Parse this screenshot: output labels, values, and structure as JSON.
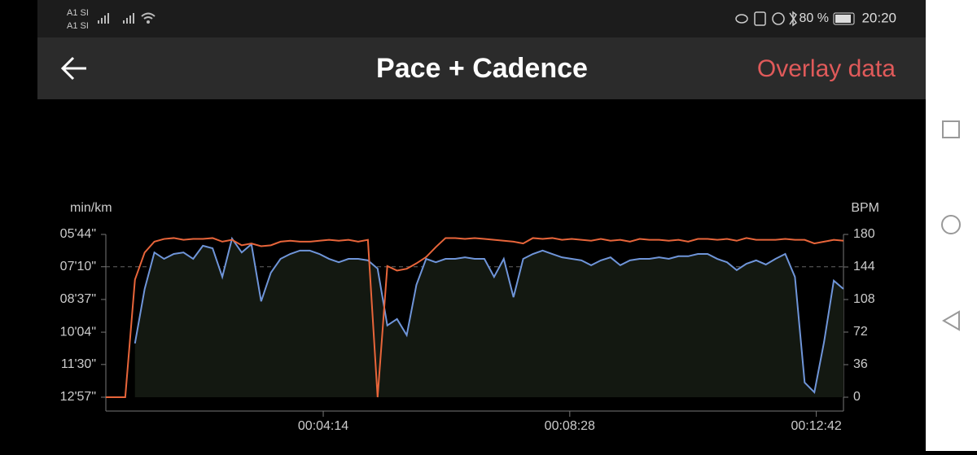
{
  "status_bar": {
    "carriers": [
      "A1 SI",
      "A1 SI"
    ],
    "battery": "80 %",
    "time": "20:20"
  },
  "header": {
    "title": "Pace + Cadence",
    "action": "Overlay data"
  },
  "chart_data": {
    "type": "line",
    "ylabel": "min/km",
    "y2label": "BPM",
    "x": [
      30,
      40,
      50,
      60,
      70,
      80,
      90,
      100,
      110,
      120,
      130,
      140,
      150,
      160,
      170,
      180,
      190,
      200,
      210,
      220,
      230,
      240,
      250,
      260,
      270,
      280,
      290,
      300,
      310,
      320,
      330,
      340,
      350,
      360,
      370,
      380,
      390,
      400,
      410,
      420,
      430,
      440,
      450,
      460,
      470,
      480,
      490,
      500,
      510,
      520,
      530,
      540,
      550,
      560,
      570,
      580,
      590,
      600,
      610,
      620,
      630,
      640,
      650,
      660,
      670,
      680,
      690,
      700,
      710,
      720,
      730,
      740,
      750,
      760,
      770,
      780,
      790
    ],
    "xlim": [
      30,
      790
    ],
    "xticks": [
      {
        "value": 254,
        "label": "00:04:14"
      },
      {
        "value": 508,
        "label": "00:08:28"
      },
      {
        "value": 762,
        "label": "00:12:42"
      }
    ],
    "ylim": [
      777,
      344
    ],
    "yticks": [
      {
        "value": 344,
        "label": "05'44\""
      },
      {
        "value": 430,
        "label": "07'10\""
      },
      {
        "value": 517,
        "label": "08'37\""
      },
      {
        "value": 604,
        "label": "10'04\""
      },
      {
        "value": 690,
        "label": "11'30\""
      },
      {
        "value": 777,
        "label": "12'57\""
      }
    ],
    "y2lim": [
      0,
      180
    ],
    "y2ticks": [
      0,
      36,
      72,
      108,
      144,
      180
    ],
    "reference_line": 430,
    "series": [
      {
        "color": "#6f95d9",
        "fill": "#131811",
        "values": [
          null,
          null,
          null,
          634,
          489,
          392,
          409,
          396,
          392,
          409,
          374,
          381,
          457,
          355,
          392,
          370,
          522,
          446,
          409,
          396,
          387,
          387,
          396,
          409,
          418,
          409,
          409,
          413,
          435,
          586,
          569,
          612,
          478,
          409,
          418,
          409,
          409,
          405,
          409,
          409,
          457,
          409,
          511,
          409,
          396,
          387,
          396,
          405,
          409,
          413,
          426,
          413,
          405,
          426,
          413,
          409,
          409,
          405,
          409,
          402,
          402,
          396,
          396,
          409,
          418,
          439,
          422,
          413,
          424,
          409,
          396,
          457,
          738,
          764,
          630,
          467,
          489
        ]
      },
      {
        "color": "#e8653a",
        "axis": "y2",
        "values": [
          0,
          0,
          0,
          130,
          160,
          172,
          175,
          176,
          174,
          175,
          175,
          176,
          172,
          174,
          168,
          170,
          167,
          168,
          172,
          173,
          172,
          172,
          173,
          174,
          173,
          174,
          172,
          174,
          0,
          145,
          140,
          142,
          148,
          155,
          166,
          176,
          176,
          175,
          176,
          175,
          174,
          173,
          172,
          170,
          176,
          175,
          176,
          174,
          175,
          174,
          173,
          175,
          173,
          174,
          172,
          175,
          174,
          174,
          173,
          174,
          172,
          175,
          175,
          174,
          175,
          173,
          176,
          174,
          174,
          174,
          175,
          174,
          174,
          170,
          172,
          174,
          173
        ]
      }
    ]
  }
}
